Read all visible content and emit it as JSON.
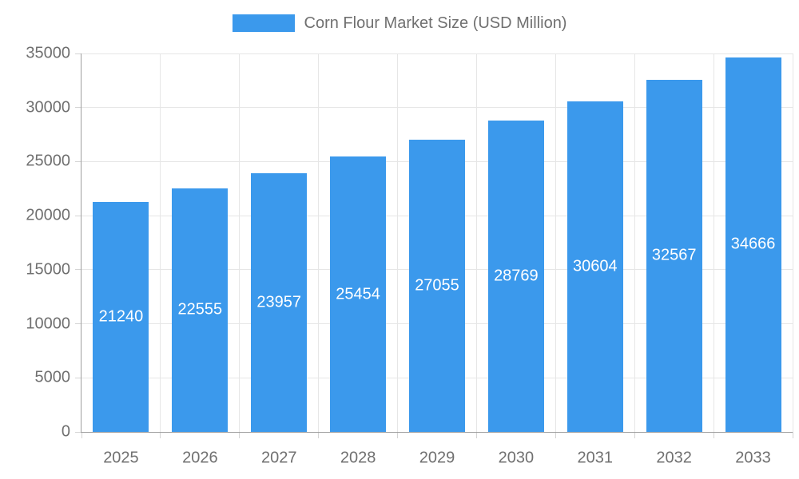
{
  "chart_data": {
    "type": "bar",
    "title": "Corn Flour Market Size (USD Million)",
    "series_name": "Corn Flour Market Size (USD Million)",
    "categories": [
      "2025",
      "2026",
      "2027",
      "2028",
      "2029",
      "2030",
      "2031",
      "2032",
      "2033"
    ],
    "values": [
      21240,
      22555,
      23957,
      25454,
      27055,
      28769,
      30604,
      32567,
      34666
    ],
    "value_labels": [
      "21240",
      "22555",
      "23957",
      "25454",
      "27055",
      "28769",
      "30604",
      "32567",
      "34666"
    ],
    "xlabel": "",
    "ylabel": "",
    "ylim": [
      0,
      35000
    ],
    "ytick_step": 5000,
    "ytick_labels": [
      "0",
      "5000",
      "10000",
      "15000",
      "20000",
      "25000",
      "30000",
      "35000"
    ],
    "grid": true,
    "legend_position": "top-center",
    "colors": {
      "bar": "#3B99EC",
      "value_label": "#FFFFFF",
      "text": "#707070",
      "grid": "#E6E6E6",
      "tick": "#D4D4D4",
      "axis_line": "#9E9E9E",
      "background": "#FFFFFF"
    }
  }
}
